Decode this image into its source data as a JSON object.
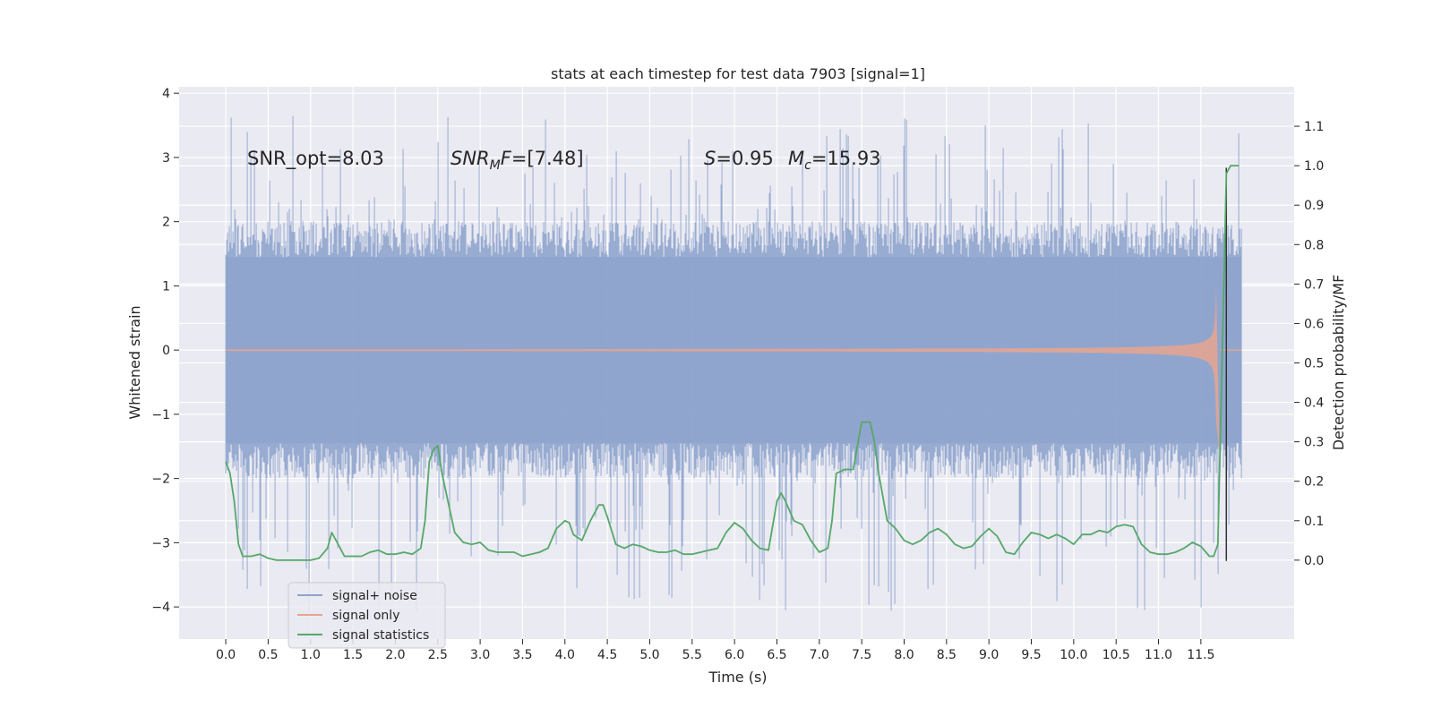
{
  "chart_data": {
    "type": "line",
    "title": "stats at each timestep for test data 7903 [signal=1]",
    "xlabel": "Time (s)",
    "ylabel": "Whitened strain",
    "y2label": "Detection probability/MF",
    "xlim": [
      -0.55,
      12.6
    ],
    "ylim": [
      -4.5,
      4.1
    ],
    "y2lim": [
      -0.2,
      1.2
    ],
    "x_ticks": [
      "0.0",
      "0.5",
      "1.0",
      "1.5",
      "2.0",
      "2.5",
      "3.0",
      "3.5",
      "4.0",
      "4.5",
      "5.0",
      "5.5",
      "6.0",
      "6.5",
      "7.0",
      "7.5",
      "8.0",
      "8.5",
      "9.0",
      "9.5",
      "10.0",
      "10.5",
      "11.0",
      "11.5"
    ],
    "y_ticks": [
      "4",
      "3",
      "2",
      "1",
      "0",
      "−1",
      "−2",
      "−3",
      "−4"
    ],
    "y2_ticks": [
      "1.1",
      "1.0",
      "0.9",
      "0.8",
      "0.7",
      "0.6",
      "0.5",
      "0.4",
      "0.3",
      "0.2",
      "0.1",
      "0.0"
    ],
    "grid": true,
    "legend_position": "lower-left",
    "annotations": {
      "snr_opt": "SNR_opt=8.03",
      "snr_mf_italic": "SNR",
      "snr_mf_sub": "M",
      "snr_mf_rest": "F",
      "snr_mf_value": "=[7.48]",
      "s_symbol": "S",
      "s_value": "=0.95",
      "mc_symbol": "M",
      "mc_sub": "c",
      "mc_value": "=15.93"
    },
    "series": [
      {
        "name": "signal+ noise",
        "color": "#8fa4cd",
        "axis": "left",
        "kind": "noise",
        "x_range": [
          0.0,
          11.98
        ],
        "typical_envelope": [
          -2.0,
          2.0
        ],
        "max_value": 3.7,
        "min_value": -4.1
      },
      {
        "name": "signal only",
        "color": "#e7a48e",
        "axis": "left",
        "kind": "chirp",
        "x_range": [
          0.0,
          11.98
        ],
        "peak_time": 11.68,
        "peak_amplitude": 1.35
      },
      {
        "name": "signal statistics",
        "color": "#55a868",
        "axis": "right",
        "x": [
          0.0,
          0.05,
          0.1,
          0.15,
          0.2,
          0.3,
          0.4,
          0.5,
          0.6,
          0.8,
          1.0,
          1.1,
          1.2,
          1.25,
          1.3,
          1.4,
          1.5,
          1.6,
          1.7,
          1.8,
          1.9,
          2.0,
          2.1,
          2.2,
          2.3,
          2.35,
          2.4,
          2.45,
          2.5,
          2.55,
          2.6,
          2.7,
          2.8,
          2.9,
          3.0,
          3.1,
          3.2,
          3.3,
          3.4,
          3.5,
          3.6,
          3.7,
          3.8,
          3.9,
          4.0,
          4.05,
          4.1,
          4.2,
          4.3,
          4.4,
          4.45,
          4.5,
          4.6,
          4.7,
          4.8,
          4.9,
          5.0,
          5.1,
          5.2,
          5.3,
          5.4,
          5.5,
          5.6,
          5.7,
          5.8,
          5.9,
          6.0,
          6.1,
          6.2,
          6.3,
          6.4,
          6.5,
          6.55,
          6.6,
          6.7,
          6.8,
          6.9,
          7.0,
          7.1,
          7.15,
          7.2,
          7.3,
          7.4,
          7.5,
          7.55,
          7.6,
          7.65,
          7.7,
          7.8,
          7.9,
          8.0,
          8.1,
          8.2,
          8.3,
          8.4,
          8.5,
          8.6,
          8.7,
          8.8,
          8.9,
          9.0,
          9.1,
          9.2,
          9.3,
          9.4,
          9.5,
          9.6,
          9.7,
          9.8,
          9.9,
          10.0,
          10.1,
          10.2,
          10.3,
          10.4,
          10.5,
          10.6,
          10.7,
          10.8,
          10.9,
          11.0,
          11.1,
          11.2,
          11.3,
          11.4,
          11.5,
          11.6,
          11.65,
          11.7,
          11.75,
          11.8,
          11.85,
          11.9,
          11.95
        ],
        "y": [
          0.25,
          0.22,
          0.15,
          0.04,
          0.01,
          0.01,
          0.015,
          0.005,
          0.0,
          0.0,
          0.0,
          0.005,
          0.03,
          0.07,
          0.05,
          0.01,
          0.01,
          0.01,
          0.02,
          0.025,
          0.015,
          0.015,
          0.02,
          0.015,
          0.03,
          0.1,
          0.25,
          0.28,
          0.29,
          0.22,
          0.17,
          0.07,
          0.045,
          0.04,
          0.045,
          0.025,
          0.02,
          0.02,
          0.02,
          0.01,
          0.015,
          0.02,
          0.03,
          0.08,
          0.1,
          0.095,
          0.065,
          0.05,
          0.1,
          0.14,
          0.14,
          0.11,
          0.04,
          0.03,
          0.04,
          0.035,
          0.025,
          0.02,
          0.02,
          0.025,
          0.015,
          0.015,
          0.02,
          0.025,
          0.03,
          0.07,
          0.095,
          0.08,
          0.05,
          0.03,
          0.025,
          0.15,
          0.17,
          0.15,
          0.1,
          0.09,
          0.05,
          0.02,
          0.03,
          0.1,
          0.22,
          0.23,
          0.23,
          0.35,
          0.35,
          0.35,
          0.3,
          0.22,
          0.1,
          0.08,
          0.05,
          0.04,
          0.05,
          0.07,
          0.08,
          0.065,
          0.04,
          0.03,
          0.035,
          0.06,
          0.08,
          0.06,
          0.02,
          0.015,
          0.045,
          0.07,
          0.065,
          0.055,
          0.065,
          0.055,
          0.04,
          0.065,
          0.065,
          0.075,
          0.07,
          0.085,
          0.09,
          0.085,
          0.04,
          0.02,
          0.015,
          0.015,
          0.02,
          0.03,
          0.045,
          0.035,
          0.01,
          0.01,
          0.04,
          0.5,
          0.98,
          1.0,
          1.0,
          1.0
        ]
      }
    ],
    "vertical_line": {
      "x": 11.8,
      "color": "#333333"
    }
  }
}
